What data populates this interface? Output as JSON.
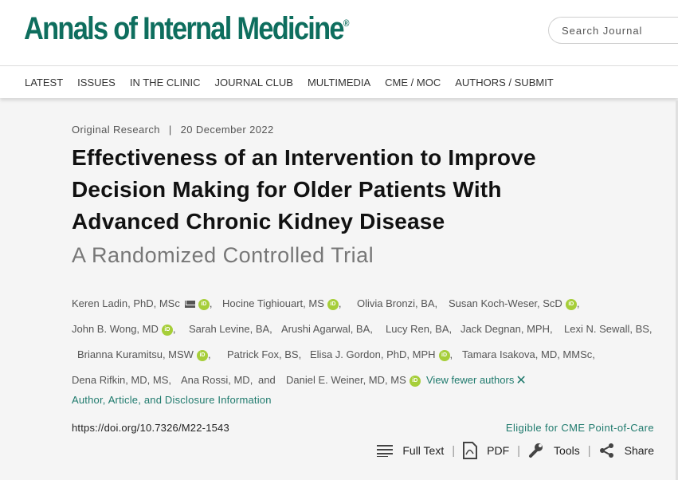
{
  "journal": {
    "name": "Annals of Internal Medicine",
    "mark": "®"
  },
  "search": {
    "placeholder": "Search Journal"
  },
  "nav": [
    "LATEST",
    "ISSUES",
    "IN THE CLINIC",
    "JOURNAL CLUB",
    "MULTIMEDIA",
    "CME / MOC",
    "AUTHORS / SUBMIT"
  ],
  "article": {
    "type": "Original Research",
    "separator": "|",
    "date": "20 December 2022",
    "title": "Effectiveness of an Intervention to Improve Decision Making for Older Patients With Advanced Chronic Kidney Disease",
    "subtitle": "A Randomized Controlled Trial",
    "doi": "https://doi.org/10.7326/M22-1543"
  },
  "authors": {
    "line1": [
      "Keren Ladin, PhD, MSc",
      "Hocine Tighiouart, MS",
      "Olivia Bronzi, BA,",
      "Susan Koch-Weser, ScD"
    ],
    "line2": [
      "John B. Wong, MD",
      "Sarah Levine, BA,",
      "Arushi Agarwal, BA,",
      "Lucy Ren, BA,",
      "Jack Degnan, MPH,",
      "Lexi N. Sewall, BS,"
    ],
    "line3": [
      "Brianna Kuramitsu, MSW",
      "Patrick Fox, BS,",
      "Elisa J. Gordon, PhD, MPH",
      "Tamara Isakova, MD, MMSc,"
    ],
    "line4": [
      "Dena Rifkin, MD, MS,",
      "Ana Rossi, MD,",
      "and",
      "Daniel E. Weiner, MD, MS"
    ],
    "orcid_label": "iD",
    "comma": ",",
    "view_fewer": "View fewer authors",
    "close_glyph": "✕"
  },
  "disclosure_link": "Author, Article, and Disclosure Information",
  "cme_link": "Eligible for CME Point-of-Care",
  "tools": {
    "full_text": "Full Text",
    "pdf": "PDF",
    "tools": "Tools",
    "share": "Share",
    "separator": "|"
  },
  "colors": {
    "brand": "#0e6e5e",
    "link": "#1f7a6d",
    "orcid": "#a6ce39"
  }
}
